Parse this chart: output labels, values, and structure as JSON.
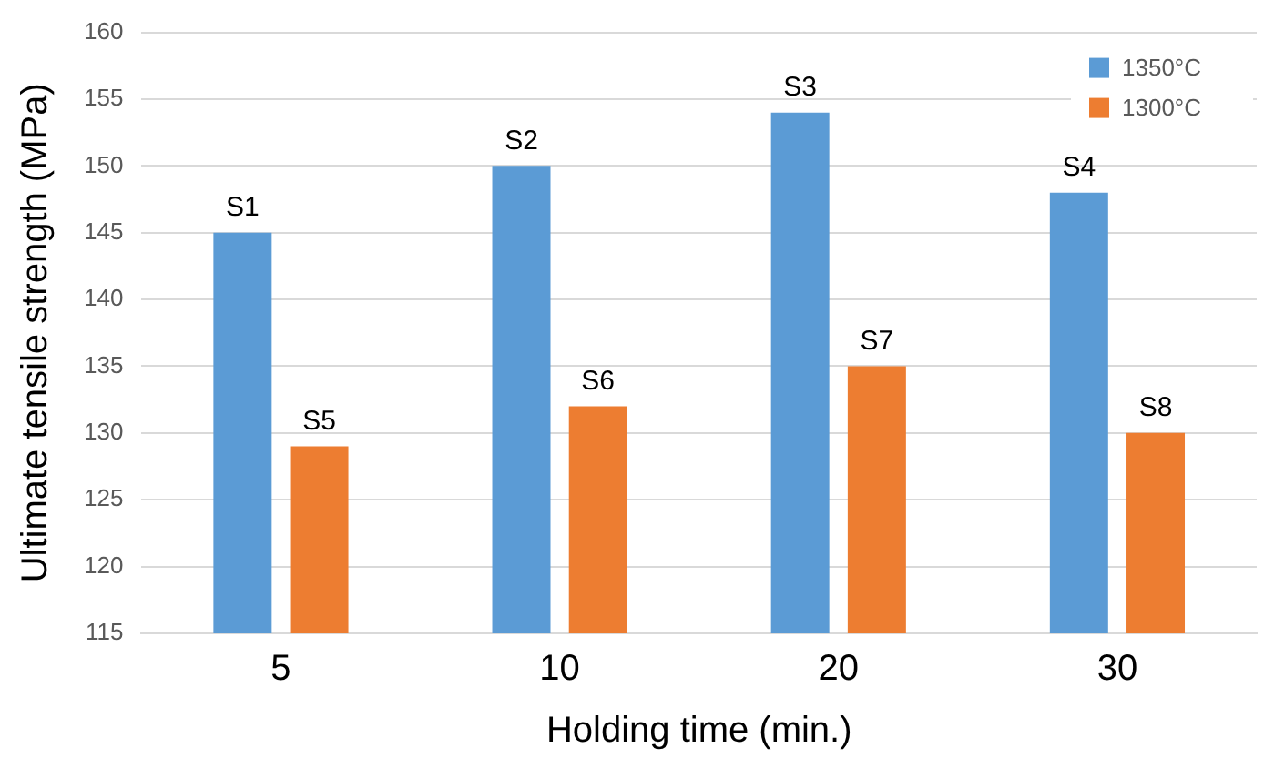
{
  "chart_data": {
    "type": "bar",
    "xlabel": "Holding time (min.)",
    "ylabel": "Ultimate tensile strength (MPa)",
    "categories": [
      "5",
      "10",
      "20",
      "30"
    ],
    "series": [
      {
        "name": "1350°C",
        "color": "#5b9bd5",
        "values": [
          145,
          150,
          154,
          148
        ],
        "value_labels": [
          "S1",
          "S2",
          "S3",
          "S4"
        ]
      },
      {
        "name": "1300°C",
        "color": "#ed7d31",
        "values": [
          129,
          132,
          135,
          130
        ],
        "value_labels": [
          "S5",
          "S6",
          "S7",
          "S8"
        ]
      }
    ],
    "ylim": [
      115,
      160
    ],
    "yticks": [
      115,
      120,
      125,
      130,
      135,
      140,
      145,
      150,
      155,
      160
    ],
    "grid": "y",
    "legend": "top right"
  }
}
